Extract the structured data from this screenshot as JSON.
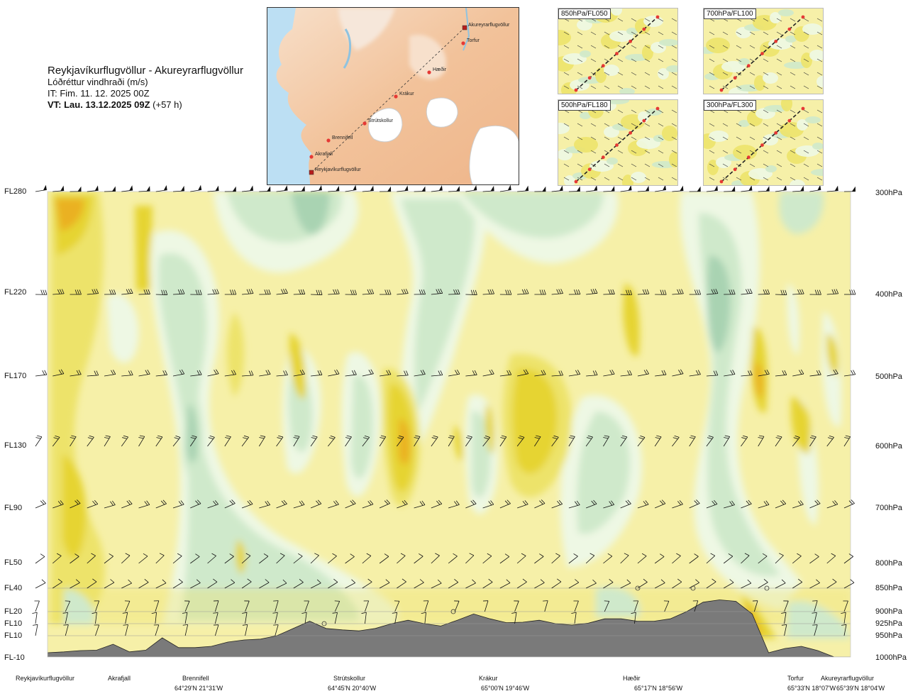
{
  "header": {
    "route": "Reykjavíkurflugvöllur - Akureyrarflugvöllur",
    "variable": "Lóðréttur vindhraði (m/s)",
    "issue_time": "IT: Fim. 11. 12. 2025 00Z",
    "valid_prefix": "VT: Lau. 13.12.2025 09Z",
    "valid_offset": "(+57 h)"
  },
  "route_map": {
    "points": [
      {
        "name": "Akureyrarflugvöllur",
        "kind": "airport"
      },
      {
        "name": "Torfur",
        "kind": "waypoint"
      },
      {
        "name": "Hæðir",
        "kind": "waypoint"
      },
      {
        "name": "Krákur",
        "kind": "waypoint"
      },
      {
        "name": "Strútskollur",
        "kind": "waypoint"
      },
      {
        "name": "Brennifell",
        "kind": "waypoint"
      },
      {
        "name": "Akrafjall",
        "kind": "waypoint"
      },
      {
        "name": "Reykjavíkurflugvöllur",
        "kind": "airport"
      }
    ]
  },
  "mini_maps": [
    {
      "label": "850hPa/FL050"
    },
    {
      "label": "700hPa/FL100"
    },
    {
      "label": "500hPa/FL180"
    },
    {
      "label": "300hPa/FL300"
    }
  ],
  "levels": [
    {
      "fl": "FL280",
      "hpa": "300hPa"
    },
    {
      "fl": "FL220",
      "hpa": "400hPa"
    },
    {
      "fl": "FL170",
      "hpa": "500hPa"
    },
    {
      "fl": "FL130",
      "hpa": "600hPa"
    },
    {
      "fl": "FL90",
      "hpa": "700hPa"
    },
    {
      "fl": "FL50",
      "hpa": "800hPa"
    },
    {
      "fl": "FL40",
      "hpa": "850hPa"
    },
    {
      "fl": "FL20",
      "hpa": "900hPa"
    },
    {
      "fl": "FL10",
      "hpa": "925hPa"
    },
    {
      "fl": "FL10",
      "hpa": "950hPa"
    },
    {
      "fl": "FL-10",
      "hpa": "1000hPa"
    }
  ],
  "locations": [
    {
      "name": "Reykjavíkurflugvöllur",
      "coords": ""
    },
    {
      "name": "Akrafjall",
      "coords": ""
    },
    {
      "name": "Brennifell",
      "coords": "64°29'N 21°31'W"
    },
    {
      "name": "Strútskollur",
      "coords": "64°45'N 20°40'W"
    },
    {
      "name": "Krákur",
      "coords": "65°00'N 19°46'W"
    },
    {
      "name": "Hæðir",
      "coords": "65°17'N 18°56'W"
    },
    {
      "name": "Torfur",
      "coords": "65°33'N 18°07'W"
    },
    {
      "name": "Akureyrarflugvöllur",
      "coords": "65°39'N 18°04'W"
    }
  ],
  "colors": {
    "neutral": "#f6f0a8",
    "up_weak": "#ede36a",
    "up_mid": "#e6d430",
    "up_strong": "#eab120",
    "down_pale": "#eef8e4",
    "down_weak": "#cfe9cb",
    "down_mid": "#a9d3b2",
    "terrain": "#7a7a7a",
    "sea": "#bfe0f4",
    "land": "#f3c7a4"
  },
  "chart_data": {
    "type": "heatmap",
    "title": "Reykjavíkurflugvöllur - Akureyrarflugvöllur",
    "quantity": "Lóðréttur vindhraði (m/s)",
    "x_stations": [
      "Reykjavíkurflugvöllur",
      "Akrafjall",
      "Brennifell",
      "Strútskollur",
      "Krákur",
      "Hæðir",
      "Torfur",
      "Akureyrarflugvöllur"
    ],
    "y_pressure_hpa": [
      300,
      400,
      500,
      600,
      700,
      800,
      850,
      900,
      925,
      950,
      1000
    ],
    "barb_levels_hpa": [
      300,
      400,
      500,
      600,
      700,
      800,
      850,
      900,
      925,
      950
    ],
    "sign_convention": "yellow/orange = upward motion, green = downward motion",
    "terrain_profile_hpa": [
      990,
      988,
      985,
      984,
      970,
      988,
      984,
      955,
      978,
      978,
      975,
      965,
      960,
      958,
      950,
      935,
      920,
      935,
      938,
      940,
      935,
      925,
      918,
      925,
      930,
      918,
      905,
      915,
      923,
      922,
      918,
      925,
      928,
      924,
      915,
      915,
      920,
      920,
      915,
      900,
      880,
      875,
      878,
      905,
      990,
      980,
      975,
      985,
      1000,
      1000
    ]
  }
}
